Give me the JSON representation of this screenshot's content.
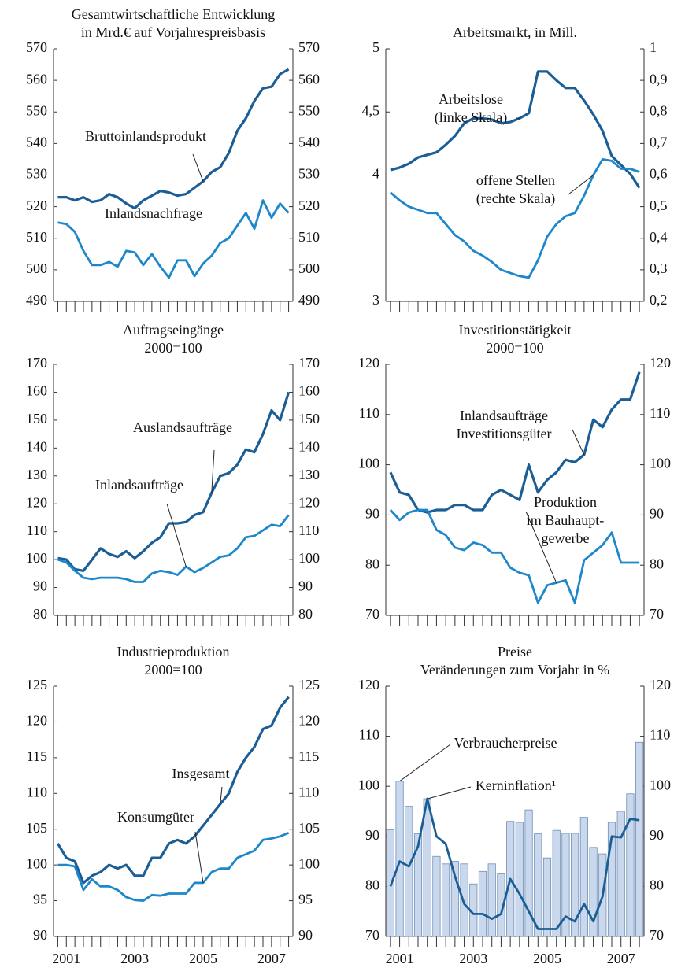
{
  "chart_data": [
    {
      "type": "line",
      "title": [
        "Gesamtwirtschaftliche Entwicklung",
        "in Mrd.€ auf Vorjahrespreisbasis"
      ],
      "categories": [
        null,
        null,
        null,
        null,
        null,
        null,
        null,
        null,
        null,
        null,
        null,
        null,
        null,
        null,
        null,
        null,
        null,
        null,
        null,
        null,
        null,
        null,
        null,
        null,
        null,
        null,
        null,
        null
      ],
      "ylim": [
        490,
        570
      ],
      "yticks": [
        490,
        500,
        510,
        520,
        530,
        540,
        550,
        560,
        570
      ],
      "y2lim": [
        490,
        570
      ],
      "y2ticks": [
        490,
        500,
        510,
        520,
        530,
        540,
        550,
        560,
        570
      ],
      "series": [
        {
          "name": [
            "Bruttoinlandsprodukt"
          ],
          "color": "#1b5e96",
          "values": [
            523,
            523,
            522,
            523,
            521.5,
            522,
            524,
            523,
            521,
            519.5,
            522,
            523.5,
            525,
            524.5,
            523.5,
            524,
            526,
            528,
            531,
            532.5,
            537,
            544,
            548,
            553.5,
            557.5,
            558,
            562,
            563.5
          ]
        },
        {
          "name": [
            "Inlandsnachfrage"
          ],
          "color": "#1d87cc",
          "values": [
            515,
            514.5,
            512,
            506,
            501.5,
            501.5,
            502.5,
            501,
            506,
            505.5,
            501.5,
            505,
            501,
            497.5,
            503,
            503,
            498,
            502,
            504.5,
            508.5,
            510,
            514,
            518,
            513,
            522,
            516.5,
            521,
            518
          ]
        }
      ]
    },
    {
      "type": "line",
      "title": [
        "Arbeitsmarkt, in Mill."
      ],
      "categories": [
        null,
        null,
        null,
        null,
        null,
        null,
        null,
        null,
        null,
        null,
        null,
        null,
        null,
        null,
        null,
        null,
        null,
        null,
        null,
        null,
        null,
        null,
        null,
        null,
        null,
        null,
        null,
        null
      ],
      "ylim": [
        3,
        5
      ],
      "yticks": [
        3,
        4,
        {
          "value": 4.5,
          "label": "4,5"
        },
        5
      ],
      "y2lim": [
        0.2,
        1
      ],
      "y2ticks": [
        {
          "value": 0.2,
          "label": "0,2"
        },
        {
          "value": 0.3,
          "label": "0,3"
        },
        {
          "value": 0.4,
          "label": "0,4"
        },
        {
          "value": 0.5,
          "label": "0,5"
        },
        {
          "value": 0.6,
          "label": "0,6"
        },
        {
          "value": 0.7,
          "label": "0,7"
        },
        {
          "value": 0.8,
          "label": "0,8"
        },
        {
          "value": 0.9,
          "label": "0,9"
        },
        1
      ],
      "series": [
        {
          "name": [
            "Arbeitslose",
            "(linke Skala)"
          ],
          "color": "#1b5e96",
          "values": [
            4.04,
            4.06,
            4.09,
            4.14,
            4.16,
            4.18,
            4.24,
            4.31,
            4.41,
            4.45,
            4.45,
            4.44,
            4.41,
            4.42,
            4.45,
            4.49,
            4.82,
            4.82,
            4.75,
            4.69,
            4.69,
            4.59,
            4.48,
            4.35,
            4.15,
            4.08,
            4.01,
            3.9
          ]
        },
        {
          "name": [
            "offene Stellen",
            "(rechte Skala)"
          ],
          "color": "#1d87cc",
          "axis": "y2",
          "values": [
            0.545,
            0.52,
            0.5,
            0.49,
            0.48,
            0.48,
            0.445,
            0.41,
            0.39,
            0.36,
            0.345,
            0.325,
            0.3,
            0.29,
            0.28,
            0.275,
            0.33,
            0.405,
            0.445,
            0.47,
            0.48,
            0.535,
            0.6,
            0.65,
            0.645,
            0.62,
            0.62,
            0.61
          ]
        }
      ]
    },
    {
      "type": "line",
      "title": [
        "Auftragseingänge",
        "2000=100"
      ],
      "categories": [
        null,
        null,
        null,
        null,
        null,
        null,
        null,
        null,
        null,
        null,
        null,
        null,
        null,
        null,
        null,
        null,
        null,
        null,
        null,
        null,
        null,
        null,
        null,
        null,
        null,
        null,
        null,
        null
      ],
      "ylim": [
        80,
        170
      ],
      "yticks": [
        80,
        90,
        100,
        110,
        120,
        130,
        140,
        150,
        160,
        170
      ],
      "y2lim": [
        80,
        170
      ],
      "y2ticks": [
        80,
        90,
        100,
        110,
        120,
        130,
        140,
        150,
        160,
        170
      ],
      "series": [
        {
          "name": [
            "Auslandsaufträge"
          ],
          "color": "#1b5e96",
          "values": [
            100.5,
            100,
            96.5,
            96,
            100,
            104,
            102,
            101,
            103,
            100.5,
            103,
            106,
            108,
            113,
            113,
            113.5,
            116,
            117,
            124,
            130,
            131,
            134,
            139.5,
            138.5,
            145,
            153.5,
            150,
            160
          ]
        },
        {
          "name": [
            "Inlandsaufträge"
          ],
          "color": "#1d87cc",
          "values": [
            100,
            99,
            96,
            93.5,
            93,
            93.5,
            93.5,
            93.5,
            93,
            92,
            92,
            95,
            96,
            95.5,
            94.5,
            97.5,
            95.5,
            97,
            99,
            101,
            101.5,
            104,
            108,
            108.5,
            110.5,
            112.5,
            112,
            116
          ]
        }
      ]
    },
    {
      "type": "line",
      "title": [
        "Investitionstätigkeit",
        "2000=100"
      ],
      "categories": [
        null,
        null,
        null,
        null,
        null,
        null,
        null,
        null,
        null,
        null,
        null,
        null,
        null,
        null,
        null,
        null,
        null,
        null,
        null,
        null,
        null,
        null,
        null,
        null,
        null,
        null,
        null,
        null
      ],
      "ylim": [
        70,
        120
      ],
      "yticks": [
        70,
        80,
        90,
        100,
        110,
        120
      ],
      "y2lim": [
        70,
        120
      ],
      "y2ticks": [
        70,
        80,
        90,
        100,
        110,
        120
      ],
      "series": [
        {
          "name": [
            "Inlandsaufträge",
            "Investitionsgüter"
          ],
          "color": "#1b5e96",
          "values": [
            98.5,
            94.5,
            94,
            91,
            90.5,
            91,
            91,
            92,
            92,
            91,
            91,
            94,
            95,
            94,
            93,
            100,
            94.5,
            97,
            98.5,
            101,
            100.5,
            102,
            109,
            107.5,
            111,
            113,
            113,
            118.5
          ]
        },
        {
          "name": [
            "Produktion",
            "im Bauhaupt-",
            "gewerbe"
          ],
          "color": "#1d87cc",
          "values": [
            91,
            89,
            90.5,
            91,
            91,
            87,
            86,
            83.5,
            83,
            84.5,
            84,
            82.5,
            82.5,
            79.5,
            78.5,
            78,
            72.5,
            76,
            76.5,
            77,
            72.5,
            81,
            82.5,
            84,
            86.5,
            80.5,
            80.5,
            80.5
          ]
        }
      ]
    },
    {
      "type": "line",
      "title": [
        "Industrieproduktion",
        "2000=100"
      ],
      "categories": [
        null,
        "2001",
        null,
        null,
        null,
        null,
        null,
        null,
        null,
        "2003",
        null,
        null,
        null,
        null,
        null,
        null,
        null,
        "2005",
        null,
        null,
        null,
        null,
        null,
        null,
        null,
        "2007",
        null,
        null
      ],
      "ylim": [
        90,
        125
      ],
      "yticks": [
        90,
        95,
        100,
        105,
        110,
        115,
        120,
        125
      ],
      "y2lim": [
        90,
        125
      ],
      "y2ticks": [
        90,
        95,
        100,
        105,
        110,
        115,
        120,
        125
      ],
      "series": [
        {
          "name": [
            "Insgesamt"
          ],
          "color": "#1b5e96",
          "values": [
            103,
            101,
            100.5,
            97.5,
            98.5,
            99,
            100,
            99.5,
            100,
            98.5,
            98.5,
            101,
            101,
            103,
            103.5,
            103,
            104,
            105.5,
            107,
            108.5,
            110,
            113,
            115,
            116.5,
            119,
            119.5,
            122,
            123.5
          ]
        },
        {
          "name": [
            "Konsumgüter"
          ],
          "color": "#1d87cc",
          "values": [
            100,
            100,
            99.8,
            96.5,
            98,
            97,
            97,
            96.5,
            95.5,
            95.1,
            95,
            95.8,
            95.7,
            96,
            96,
            96,
            97.5,
            97.5,
            99,
            99.5,
            99.5,
            101,
            101.5,
            102,
            103.5,
            103.7,
            104,
            104.5
          ]
        }
      ]
    },
    {
      "type": "combo",
      "title": [
        "Preise",
        "Veränderungen zum Vorjahr in %"
      ],
      "categories": [
        null,
        "2001",
        null,
        null,
        null,
        null,
        null,
        null,
        null,
        "2003",
        null,
        null,
        null,
        null,
        null,
        null,
        null,
        "2005",
        null,
        null,
        null,
        null,
        null,
        null,
        null,
        "2007",
        null,
        null
      ],
      "ylim": [
        70,
        120
      ],
      "yticks": [
        70,
        80,
        90,
        100,
        110,
        120
      ],
      "y2lim": [
        70,
        120
      ],
      "y2ticks": [
        70,
        80,
        90,
        100,
        110,
        120
      ],
      "series": [
        {
          "name": [
            "Verbraucherpreise"
          ],
          "type": "bar",
          "color": "#c9d8ec",
          "values": [
            91.3,
            101,
            96,
            90.5,
            97.5,
            86,
            84.5,
            85,
            84.5,
            80.5,
            83,
            84.5,
            82.5,
            93,
            92.8,
            95.3,
            90.5,
            85.7,
            91.2,
            90.6,
            90.6,
            93.8,
            87.8,
            86.5,
            92.8,
            95,
            98.5,
            108.8
          ]
        },
        {
          "name": [
            "Kerninflation¹"
          ],
          "type": "line",
          "color": "#1b5e96",
          "values": [
            80,
            85,
            84,
            88,
            97.5,
            90,
            88.5,
            82,
            76.5,
            74.5,
            74.5,
            73.5,
            74.5,
            81.5,
            78.5,
            75,
            71.5,
            71.5,
            71.5,
            74,
            73,
            76.5,
            73,
            78,
            90,
            89.8,
            93.5,
            93.2
          ]
        }
      ]
    }
  ]
}
